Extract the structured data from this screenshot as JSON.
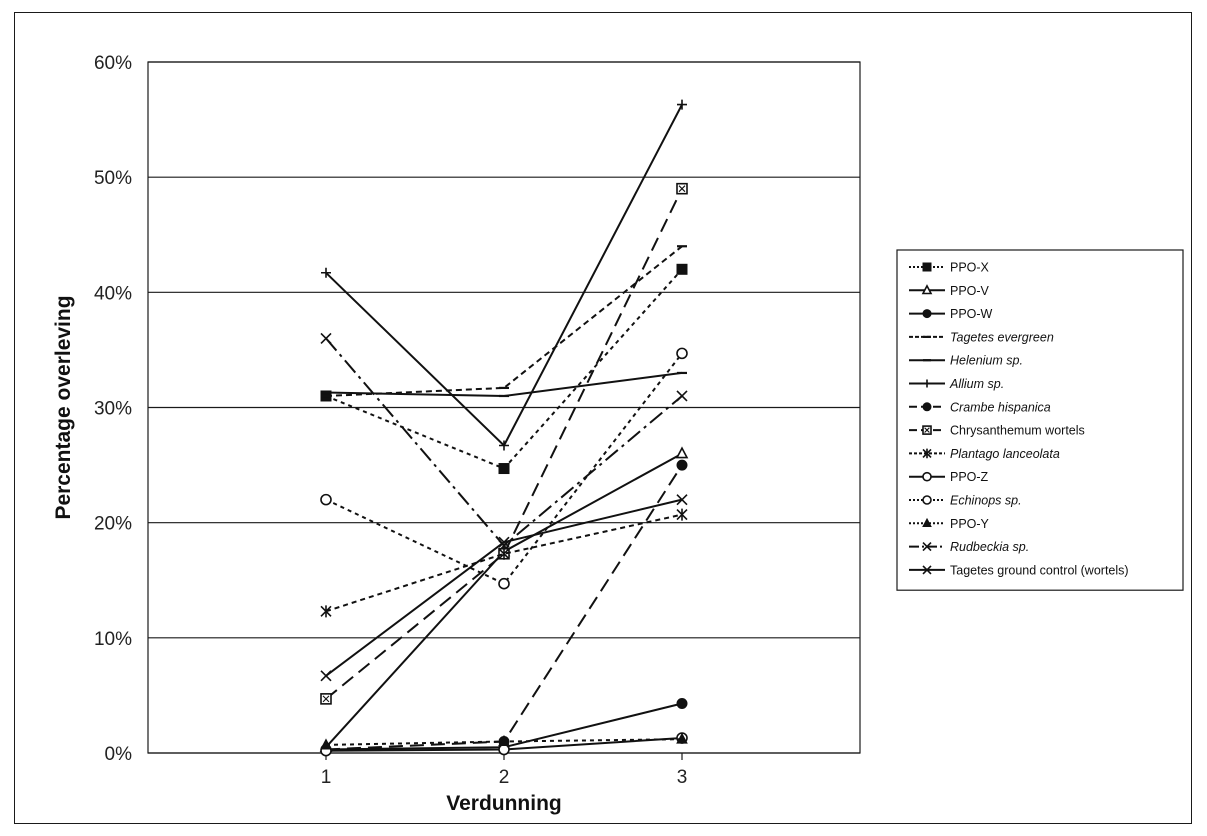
{
  "chart_data": {
    "type": "line",
    "title": "",
    "xlabel": "Verdunning",
    "ylabel": "Percentage overleving",
    "x": [
      1,
      2,
      3
    ],
    "x_tick_labels": [
      "1",
      "2",
      "3"
    ],
    "xlim": [
      0,
      4
    ],
    "ylim": [
      0,
      60
    ],
    "y_tick_labels": [
      "0%",
      "10%",
      "20%",
      "30%",
      "40%",
      "50%",
      "60%"
    ],
    "grid": "horizontal",
    "legend_position": "right",
    "series": [
      {
        "name": "PPO-X",
        "italic": false,
        "dash": "4,4",
        "marker": "square-filled",
        "values": [
          31,
          24.7,
          42
        ]
      },
      {
        "name": "PPO-V",
        "italic": false,
        "dash": "",
        "marker": "triangle-open",
        "values": [
          0.5,
          17.5,
          26
        ]
      },
      {
        "name": "PPO-W",
        "italic": false,
        "dash": "",
        "marker": "circle-filled",
        "values": [
          0.3,
          0.5,
          4.3
        ]
      },
      {
        "name": "Tagetes evergreen",
        "italic": true,
        "dash": "6,4",
        "marker": "dash",
        "values": [
          31,
          31.7,
          44
        ]
      },
      {
        "name": "Helenium sp.",
        "italic": true,
        "dash": "",
        "marker": "dash",
        "values": [
          31.3,
          31,
          33
        ]
      },
      {
        "name": "Allium sp.",
        "italic": true,
        "dash": "",
        "marker": "plus",
        "values": [
          41.7,
          26.7,
          56.3
        ]
      },
      {
        "name": "Crambe hispanica",
        "italic": true,
        "dash": "14,7",
        "marker": "circle-filled",
        "values": [
          0.3,
          1,
          25
        ]
      },
      {
        "name": "Chrysanthemum wortels",
        "italic": false,
        "dash": "14,7",
        "marker": "square-x",
        "values": [
          4.7,
          17.3,
          49
        ]
      },
      {
        "name": "Plantago lanceolata",
        "italic": true,
        "dash": "5,4",
        "marker": "star",
        "values": [
          12.3,
          17.3,
          20.7
        ]
      },
      {
        "name": "PPO-Z",
        "italic": false,
        "dash": "",
        "marker": "circle-open",
        "values": [
          0.2,
          0.3,
          1.3
        ]
      },
      {
        "name": "Echinops sp.",
        "italic": true,
        "dash": "4,4",
        "marker": "circle-open",
        "values": [
          22,
          14.7,
          34.7
        ]
      },
      {
        "name": "PPO-Y",
        "italic": false,
        "dash": "4,4",
        "marker": "triangle-filled",
        "values": [
          0.7,
          1,
          1.2
        ]
      },
      {
        "name": "Rudbeckia sp.",
        "italic": true,
        "dash": "16,5,3,5",
        "marker": "x",
        "values": [
          36,
          18,
          31
        ]
      },
      {
        "name": "Tagetes ground control (wortels)",
        "italic": false,
        "dash": "",
        "marker": "x",
        "values": [
          6.7,
          18.3,
          22
        ]
      }
    ]
  }
}
